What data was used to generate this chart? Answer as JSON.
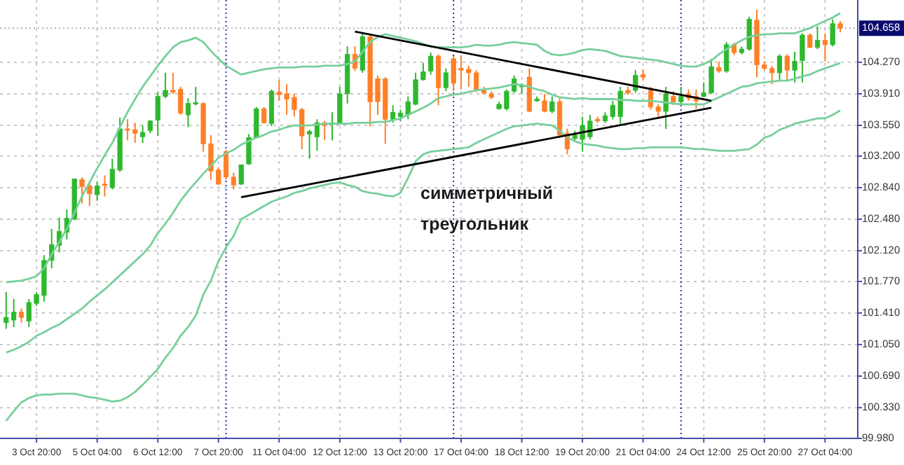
{
  "chart_data": {
    "type": "candlestick",
    "categories": [
      null,
      null,
      null,
      null,
      "3 Oct 20:00",
      null,
      null,
      null,
      null,
      null,
      null,
      null,
      "5 Oct 04:00",
      null,
      null,
      null,
      null,
      null,
      null,
      null,
      "6 Oct 12:00",
      null,
      null,
      null,
      null,
      null,
      null,
      null,
      "7 Oct 20:00",
      null,
      null,
      null,
      null,
      null,
      null,
      null,
      "11 Oct 04:00",
      null,
      null,
      null,
      null,
      null,
      null,
      null,
      "12 Oct 12:00",
      null,
      null,
      null,
      null,
      null,
      null,
      null,
      "13 Oct 20:00",
      null,
      null,
      null,
      null,
      null,
      null,
      null,
      "17 Oct 04:00",
      null,
      null,
      null,
      null,
      null,
      null,
      null,
      "18 Oct 12:00",
      null,
      null,
      null,
      null,
      null,
      null,
      null,
      "19 Oct 20:00",
      null,
      null,
      null,
      null,
      null,
      null,
      null,
      "21 Oct 04:00",
      null,
      null,
      null,
      null,
      null,
      null,
      null,
      "24 Oct 12:00",
      null,
      null,
      null,
      null,
      null,
      null,
      null,
      "25 Oct 20:00",
      null,
      null,
      null,
      null,
      null,
      null,
      null,
      "27 Oct 04:00",
      null,
      null
    ],
    "series": [
      {
        "ohlc": [
          [
            101.3,
            101.65,
            101.23,
            101.36
          ],
          [
            101.33,
            101.57,
            101.25,
            101.42
          ],
          [
            101.42,
            101.46,
            101.3,
            101.36
          ],
          [
            101.32,
            101.57,
            101.25,
            101.53
          ],
          [
            101.52,
            101.65,
            101.49,
            101.62
          ],
          [
            101.61,
            102.07,
            101.54,
            102.01
          ],
          [
            102.01,
            102.37,
            101.92,
            102.19
          ],
          [
            102.18,
            102.5,
            102.1,
            102.34
          ],
          [
            102.33,
            102.59,
            102.25,
            102.49
          ],
          [
            102.48,
            102.94,
            102.47,
            102.94
          ],
          [
            102.93,
            102.96,
            102.66,
            102.85
          ],
          [
            102.86,
            102.92,
            102.63,
            102.77
          ],
          [
            102.76,
            102.91,
            102.69,
            102.86
          ],
          [
            102.88,
            102.98,
            102.74,
            102.87
          ],
          [
            102.84,
            103.17,
            102.82,
            103.05
          ],
          [
            103.04,
            103.64,
            103.02,
            103.51
          ],
          [
            103.51,
            103.62,
            103.38,
            103.5
          ],
          [
            103.5,
            103.58,
            103.35,
            103.46
          ],
          [
            103.42,
            103.55,
            103.35,
            103.47
          ],
          [
            103.49,
            103.61,
            103.46,
            103.6
          ],
          [
            103.61,
            103.93,
            103.43,
            103.88
          ],
          [
            103.88,
            104.15,
            103.86,
            103.95
          ],
          [
            103.95,
            104.15,
            103.91,
            103.93
          ],
          [
            103.96,
            103.99,
            103.67,
            103.69
          ],
          [
            103.67,
            103.86,
            103.53,
            103.8
          ],
          [
            103.8,
            103.99,
            103.78,
            103.81
          ],
          [
            103.8,
            103.81,
            103.25,
            103.34
          ],
          [
            103.34,
            103.44,
            102.93,
            103.03
          ],
          [
            103.04,
            103.07,
            102.87,
            102.88
          ],
          [
            103.25,
            103.27,
            102.93,
            102.96
          ],
          [
            102.96,
            103.01,
            102.82,
            102.87
          ],
          [
            102.88,
            103.1,
            102.87,
            103.1
          ],
          [
            103.11,
            103.45,
            103.1,
            103.41
          ],
          [
            103.41,
            103.76,
            103.4,
            103.74
          ],
          [
            103.74,
            103.76,
            103.57,
            103.58
          ],
          [
            103.57,
            103.96,
            103.54,
            103.94
          ],
          [
            103.93,
            104.07,
            103.83,
            103.9
          ],
          [
            103.91,
            104.02,
            103.67,
            103.85
          ],
          [
            103.87,
            103.91,
            103.65,
            103.73
          ],
          [
            103.73,
            103.75,
            103.28,
            103.43
          ],
          [
            103.45,
            103.5,
            103.17,
            103.48
          ],
          [
            103.42,
            103.62,
            103.26,
            103.58
          ],
          [
            103.58,
            103.6,
            103.38,
            103.55
          ],
          [
            103.56,
            103.7,
            103.38,
            103.58
          ],
          [
            103.58,
            103.99,
            103.57,
            103.91
          ],
          [
            103.91,
            104.45,
            103.8,
            104.36
          ],
          [
            104.36,
            104.45,
            104.17,
            104.2
          ],
          [
            104.18,
            104.6,
            104.15,
            104.56
          ],
          [
            104.56,
            104.59,
            103.54,
            103.82
          ],
          [
            104.08,
            104.12,
            103.67,
            103.82
          ],
          [
            104.08,
            104.1,
            103.34,
            103.62
          ],
          [
            103.62,
            103.78,
            103.58,
            103.7
          ],
          [
            103.65,
            103.73,
            103.6,
            103.69
          ],
          [
            103.67,
            103.88,
            103.62,
            103.82
          ],
          [
            103.79,
            104.15,
            103.78,
            104.07
          ],
          [
            104.07,
            104.26,
            104.06,
            104.16
          ],
          [
            104.17,
            104.38,
            104.13,
            104.34
          ],
          [
            104.34,
            104.36,
            103.78,
            103.98
          ],
          [
            103.98,
            104.2,
            103.94,
            104.15
          ],
          [
            104.31,
            104.34,
            103.94,
            104.03
          ],
          [
            104.2,
            104.35,
            103.96,
            104.18
          ],
          [
            104.19,
            104.23,
            103.99,
            104.15
          ],
          [
            104.15,
            104.18,
            103.93,
            103.95
          ],
          [
            103.96,
            103.99,
            103.9,
            103.92
          ],
          [
            103.91,
            103.94,
            103.85,
            103.87
          ],
          [
            103.74,
            103.82,
            103.73,
            103.79
          ],
          [
            103.74,
            103.96,
            103.72,
            103.94
          ],
          [
            103.94,
            104.12,
            103.92,
            104.08
          ],
          [
            103.99,
            104.03,
            103.91,
            104.01
          ],
          [
            104.1,
            104.2,
            103.7,
            103.71
          ],
          [
            103.83,
            103.88,
            103.82,
            103.85
          ],
          [
            103.83,
            103.91,
            103.7,
            103.71
          ],
          [
            103.71,
            103.88,
            103.69,
            103.82
          ],
          [
            103.82,
            103.86,
            103.41,
            103.44
          ],
          [
            103.46,
            103.51,
            103.22,
            103.28
          ],
          [
            103.4,
            103.49,
            103.38,
            103.44
          ],
          [
            103.39,
            103.65,
            103.25,
            103.55
          ],
          [
            103.42,
            103.67,
            103.39,
            103.6
          ],
          [
            103.62,
            103.65,
            103.58,
            103.6
          ],
          [
            103.6,
            103.7,
            103.58,
            103.66
          ],
          [
            103.65,
            103.83,
            103.62,
            103.78
          ],
          [
            103.65,
            103.99,
            103.57,
            103.94
          ],
          [
            103.95,
            103.99,
            103.9,
            103.92
          ],
          [
            103.95,
            104.18,
            103.92,
            104.12
          ],
          [
            104.13,
            104.19,
            104.06,
            104.1
          ],
          [
            103.95,
            103.99,
            103.73,
            103.76
          ],
          [
            103.76,
            103.79,
            103.65,
            103.71
          ],
          [
            103.71,
            103.99,
            103.51,
            103.91
          ],
          [
            103.88,
            103.94,
            103.78,
            103.82
          ],
          [
            103.82,
            103.99,
            103.79,
            103.88
          ],
          [
            103.91,
            103.96,
            103.83,
            103.86
          ],
          [
            103.88,
            103.96,
            103.74,
            103.83
          ],
          [
            103.88,
            104.04,
            103.87,
            103.92
          ],
          [
            103.92,
            104.31,
            103.91,
            104.22
          ],
          [
            104.21,
            104.28,
            104.15,
            104.17
          ],
          [
            104.17,
            104.5,
            104.15,
            104.47
          ],
          [
            104.47,
            104.49,
            104.35,
            104.38
          ],
          [
            104.38,
            104.45,
            104.36,
            104.42
          ],
          [
            104.42,
            104.79,
            104.4,
            104.76
          ],
          [
            104.75,
            104.87,
            104.1,
            104.24
          ],
          [
            104.24,
            104.28,
            104.18,
            104.2
          ],
          [
            104.2,
            104.23,
            104.02,
            104.15
          ],
          [
            104.15,
            104.36,
            104.06,
            104.34
          ],
          [
            104.34,
            104.36,
            104.06,
            104.18
          ],
          [
            104.18,
            104.39,
            104.04,
            104.28
          ],
          [
            104.29,
            104.6,
            104.04,
            104.58
          ],
          [
            104.58,
            104.6,
            104.43,
            104.44
          ],
          [
            104.44,
            104.68,
            104.42,
            104.52
          ],
          [
            104.52,
            104.6,
            104.28,
            104.47
          ],
          [
            104.47,
            104.76,
            104.45,
            104.71
          ],
          [
            104.71,
            104.74,
            104.61,
            104.66
          ]
        ],
        "colors": [
          "#2db82d",
          "#2db82d",
          "#ff7f27",
          "#2db82d",
          "#2db82d",
          "#2db82d",
          "#2db82d",
          "#2db82d",
          "#2db82d",
          "#2db82d",
          "#ff7f27",
          "#ff7f27",
          "#2db82d",
          "#ff7f27",
          "#2db82d",
          "#2db82d",
          "#ff7f27",
          "#ff7f27",
          "#2db82d",
          "#2db82d",
          "#2db82d",
          "#2db82d",
          "#ff7f27",
          "#ff7f27",
          "#2db82d",
          "#2db82d",
          "#ff7f27",
          "#ff7f27",
          "#ff7f27",
          "#ff7f27",
          "#ff7f27",
          "#2db82d",
          "#2db82d",
          "#2db82d",
          "#ff7f27",
          "#2db82d",
          "#ff7f27",
          "#ff7f27",
          "#ff7f27",
          "#ff7f27",
          "#2db82d",
          "#2db82d",
          "#ff7f27",
          "#2db82d",
          "#2db82d",
          "#2db82d",
          "#ff7f27",
          "#2db82d",
          "#ff7f27",
          "#ff7f27",
          "#ff7f27",
          "#2db82d",
          "#2db82d",
          "#2db82d",
          "#2db82d",
          "#2db82d",
          "#2db82d",
          "#ff7f27",
          "#2db82d",
          "#ff7f27",
          "#ff7f27",
          "#ff7f27",
          "#ff7f27",
          "#ff7f27",
          "#ff7f27",
          "#2db82d",
          "#2db82d",
          "#2db82d",
          "#2db82d",
          "#ff7f27",
          "#2db82d",
          "#ff7f27",
          "#2db82d",
          "#ff7f27",
          "#ff7f27",
          "#2db82d",
          "#2db82d",
          "#2db82d",
          "#ff7f27",
          "#2db82d",
          "#2db82d",
          "#2db82d",
          "#ff7f27",
          "#2db82d",
          "#ff7f27",
          "#ff7f27",
          "#ff7f27",
          "#2db82d",
          "#ff7f27",
          "#2db82d",
          "#ff7f27",
          "#ff7f27",
          "#2db82d",
          "#2db82d",
          "#ff7f27",
          "#2db82d",
          "#ff7f27",
          "#2db82d",
          "#2db82d",
          "#ff7f27",
          "#ff7f27",
          "#ff7f27",
          "#2db82d",
          "#ff7f27",
          "#2db82d",
          "#2db82d",
          "#ff7f27",
          "#2db82d",
          "#ff7f27",
          "#2db82d",
          "#ff7f27"
        ]
      },
      {
        "type": "line",
        "color": "#78cf9c",
        "values": [
          101.76,
          101.77,
          101.78,
          101.8,
          101.83,
          101.92,
          102.08,
          102.22,
          102.37,
          102.55,
          102.74,
          102.9,
          103.06,
          103.21,
          103.35,
          103.53,
          103.7,
          103.85,
          103.99,
          104.11,
          104.23,
          104.34,
          104.44,
          104.5,
          104.52,
          104.55,
          104.5,
          104.4,
          104.31,
          104.23,
          104.18,
          104.13,
          104.15,
          104.17,
          104.19,
          104.2,
          104.21,
          104.21,
          104.21,
          104.22,
          104.22,
          104.22,
          104.23,
          104.23,
          104.23,
          104.25,
          104.28,
          104.39,
          104.5,
          104.56,
          104.59,
          104.57,
          104.55,
          104.53,
          104.51,
          104.48,
          104.45,
          104.44,
          104.44,
          104.44,
          104.44,
          104.45,
          104.47,
          104.46,
          104.46,
          104.47,
          104.49,
          104.5,
          104.49,
          104.48,
          104.47,
          104.4,
          104.36,
          104.35,
          104.36,
          104.38,
          104.41,
          104.42,
          104.41,
          104.4,
          104.37,
          104.34,
          104.33,
          104.32,
          104.31,
          104.3,
          104.29,
          104.27,
          104.25,
          104.23,
          104.22,
          104.22,
          104.25,
          104.29,
          104.36,
          104.42,
          104.47,
          104.52,
          104.56,
          104.58,
          104.59,
          104.59,
          104.6,
          104.6,
          104.6,
          104.63,
          104.66,
          104.7,
          104.74,
          104.78,
          104.83
        ]
      },
      {
        "type": "line",
        "color": "#78cf9c",
        "values": [
          100.96,
          100.99,
          101.03,
          101.08,
          101.15,
          101.19,
          101.24,
          101.28,
          101.34,
          101.4,
          101.46,
          101.54,
          101.61,
          101.68,
          101.76,
          101.84,
          101.92,
          102.0,
          102.08,
          102.18,
          102.32,
          102.43,
          102.55,
          102.69,
          102.8,
          102.9,
          103.0,
          103.09,
          103.18,
          103.23,
          103.27,
          103.33,
          103.37,
          103.41,
          103.44,
          103.48,
          103.5,
          103.53,
          103.55,
          103.55,
          103.55,
          103.56,
          103.57,
          103.57,
          103.57,
          103.57,
          103.58,
          103.58,
          103.58,
          103.59,
          103.59,
          103.61,
          103.63,
          103.67,
          103.71,
          103.75,
          103.8,
          103.86,
          103.88,
          103.9,
          103.91,
          103.93,
          103.95,
          103.96,
          103.97,
          103.98,
          104.0,
          104.02,
          104.01,
          103.99,
          103.96,
          103.94,
          103.9,
          103.87,
          103.86,
          103.85,
          103.86,
          103.85,
          103.85,
          103.85,
          103.85,
          103.84,
          103.84,
          103.83,
          103.83,
          103.83,
          103.82,
          103.81,
          103.8,
          103.79,
          103.79,
          103.79,
          103.79,
          103.83,
          103.87,
          103.91,
          103.95,
          103.99,
          104.0,
          104.03,
          104.04,
          104.05,
          104.06,
          104.06,
          104.08,
          104.11,
          104.13,
          104.17,
          104.2,
          104.23,
          104.26
        ]
      },
      {
        "type": "line",
        "color": "#78cf9c",
        "values": [
          100.18,
          100.29,
          100.39,
          100.44,
          100.47,
          100.48,
          100.48,
          100.49,
          100.49,
          100.49,
          100.47,
          100.45,
          100.44,
          100.42,
          100.4,
          100.41,
          100.45,
          100.51,
          100.59,
          100.68,
          100.77,
          100.9,
          101.01,
          101.15,
          101.25,
          101.38,
          101.62,
          101.78,
          102.0,
          102.16,
          102.29,
          102.48,
          102.53,
          102.58,
          102.63,
          102.68,
          102.71,
          102.74,
          102.78,
          102.8,
          102.83,
          102.85,
          102.87,
          102.89,
          102.9,
          102.87,
          102.85,
          102.8,
          102.78,
          102.77,
          102.75,
          102.74,
          102.78,
          102.95,
          103.14,
          103.22,
          103.25,
          103.26,
          103.27,
          103.28,
          103.29,
          103.3,
          103.35,
          103.39,
          103.43,
          103.47,
          103.51,
          103.54,
          103.55,
          103.56,
          103.57,
          103.56,
          103.55,
          103.49,
          103.41,
          103.37,
          103.34,
          103.33,
          103.32,
          103.3,
          103.29,
          103.28,
          103.28,
          103.29,
          103.29,
          103.3,
          103.3,
          103.3,
          103.3,
          103.3,
          103.29,
          103.28,
          103.28,
          103.27,
          103.26,
          103.26,
          103.26,
          103.27,
          103.28,
          103.33,
          103.41,
          103.44,
          103.5,
          103.53,
          103.57,
          103.59,
          103.61,
          103.63,
          103.63,
          103.67,
          103.72
        ]
      },
      {
        "type": "line",
        "color": "#000000",
        "values": [
          null,
          null,
          null,
          null,
          null,
          null,
          null,
          null,
          null,
          null,
          null,
          null,
          null,
          null,
          null,
          null,
          null,
          null,
          null,
          null,
          null,
          null,
          null,
          null,
          null,
          null,
          null,
          null,
          null,
          null,
          null,
          null,
          null,
          null,
          null,
          null,
          null,
          null,
          null,
          null,
          null,
          null,
          null,
          null,
          null,
          null,
          104.62,
          null,
          null,
          null,
          null,
          null,
          null,
          null,
          null,
          null,
          null,
          null,
          null,
          null,
          null,
          null,
          null,
          null,
          null,
          null,
          null,
          null,
          null,
          null,
          null,
          null,
          null,
          null,
          null,
          null,
          null,
          null,
          null,
          null,
          null,
          null,
          null,
          null,
          null,
          null,
          null,
          null,
          null,
          null,
          null,
          null,
          null,
          103.83,
          null,
          null,
          null,
          null,
          null,
          null,
          null,
          null,
          null,
          null,
          null,
          null,
          null,
          null,
          null,
          null,
          null
        ]
      },
      {
        "type": "line",
        "color": "#000000",
        "values": [
          null,
          null,
          null,
          null,
          null,
          null,
          null,
          null,
          null,
          null,
          null,
          null,
          null,
          null,
          null,
          null,
          null,
          null,
          null,
          null,
          null,
          null,
          null,
          null,
          null,
          null,
          null,
          null,
          null,
          null,
          null,
          102.73,
          null,
          null,
          null,
          null,
          null,
          null,
          null,
          null,
          null,
          null,
          null,
          null,
          null,
          null,
          null,
          null,
          null,
          null,
          null,
          null,
          null,
          null,
          null,
          null,
          null,
          null,
          null,
          null,
          null,
          null,
          null,
          null,
          null,
          null,
          null,
          null,
          null,
          null,
          null,
          null,
          null,
          null,
          null,
          null,
          null,
          null,
          null,
          null,
          null,
          null,
          null,
          null,
          null,
          null,
          null,
          null,
          null,
          null,
          null,
          null,
          null,
          103.75,
          null,
          null,
          null,
          null,
          null,
          null,
          null,
          null,
          null,
          null,
          null,
          null,
          null,
          null,
          null,
          null,
          null
        ]
      }
    ],
    "ylim": [
      99.98,
      104.98
    ],
    "yticks": [
      {
        "value": 99.98,
        "label": "99.980"
      },
      {
        "value": 100.33,
        "label": "100.330"
      },
      {
        "value": 100.69,
        "label": "100.690"
      },
      {
        "value": 101.05,
        "label": "101.050"
      },
      {
        "value": 101.41,
        "label": "101.410"
      },
      {
        "value": 101.77,
        "label": "101.770"
      },
      {
        "value": 102.12,
        "label": "102.120"
      },
      {
        "value": 102.48,
        "label": "102.480"
      },
      {
        "value": 102.84,
        "label": "102.840"
      },
      {
        "value": 103.2,
        "label": "103.200"
      },
      {
        "value": 103.55,
        "label": "103.550"
      },
      {
        "value": 103.91,
        "label": "103.910"
      },
      {
        "value": 104.27,
        "label": "104.270"
      }
    ],
    "grid": true,
    "ref_lines": [
      {
        "axis": "y",
        "value": 104.658,
        "label": "104.658",
        "color": "#b0b0b0",
        "line_style": "dotted"
      }
    ],
    "annotations": [
      "симметричный треугольник"
    ]
  }
}
